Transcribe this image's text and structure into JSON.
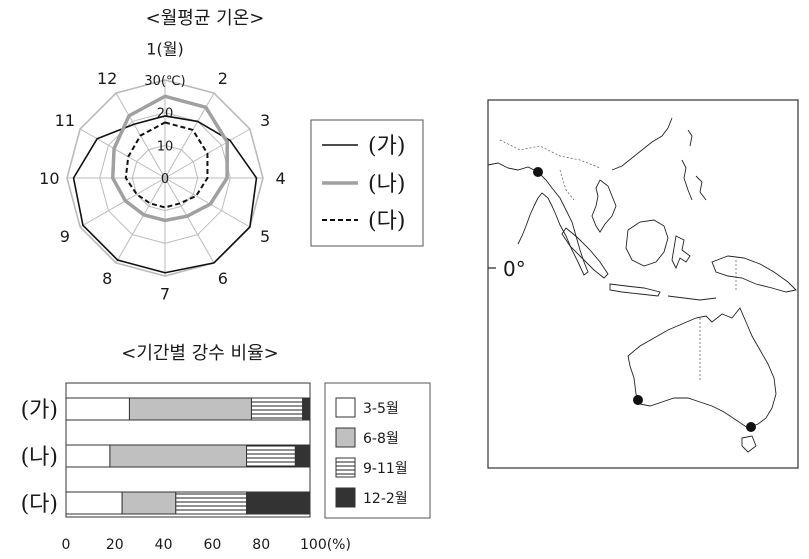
{
  "radar": {
    "title": "<월평균 기온>",
    "unit_label": "30(℃)",
    "rings": [
      0,
      10,
      20,
      30
    ],
    "ring_labels": [
      "0",
      "10",
      "20",
      "30(℃)"
    ],
    "months": [
      "1(월)",
      "2",
      "3",
      "4",
      "5",
      "6",
      "7",
      "8",
      "9",
      "10",
      "11",
      "12"
    ],
    "legend": [
      "(가)",
      "(나)",
      "(다)"
    ]
  },
  "bars": {
    "title": "<기간별 강수 비율>",
    "x_ticks": [
      "0",
      "20",
      "40",
      "60",
      "80",
      "100(%)"
    ],
    "legend": [
      "3-5월",
      "6-8월",
      "9-11월",
      "12-2월"
    ]
  },
  "map": {
    "equator_label": "0°"
  },
  "chart_data": [
    {
      "type": "radar",
      "title": "<월평균 기온>",
      "categories": [
        "1(월)",
        "2",
        "3",
        "4",
        "5",
        "6",
        "7",
        "8",
        "9",
        "10",
        "11",
        "12"
      ],
      "rlim": [
        0,
        30
      ],
      "series": [
        {
          "name": "(가)",
          "style": "solid-black",
          "values": [
            19,
            20,
            23,
            28,
            30,
            30,
            29,
            29,
            29,
            28,
            24,
            19
          ]
        },
        {
          "name": "(나)",
          "style": "solid-gray",
          "values": [
            25,
            25,
            22,
            19,
            16,
            13.5,
            13,
            13,
            14,
            16,
            18,
            22
          ]
        },
        {
          "name": "(다)",
          "style": "dashed-black",
          "values": [
            17,
            17,
            15,
            13,
            11,
            9,
            9,
            9,
            10,
            12,
            13,
            15
          ]
        }
      ]
    },
    {
      "type": "bar",
      "orientation": "horizontal",
      "stacked": true,
      "title": "<기간별 강수 비율>",
      "categories": [
        "(가)",
        "(나)",
        "(다)"
      ],
      "xlim": [
        0,
        100
      ],
      "series": [
        {
          "name": "3-5월",
          "color": "#ffffff",
          "values": [
            26,
            18,
            23
          ]
        },
        {
          "name": "6-8월",
          "color": "#c0c0c0",
          "values": [
            50,
            56,
            22
          ]
        },
        {
          "name": "9-11월",
          "color": "hatch",
          "values": [
            21,
            20,
            29
          ]
        },
        {
          "name": "12-2월",
          "color": "#333333",
          "values": [
            3,
            6,
            26
          ]
        }
      ]
    }
  ]
}
